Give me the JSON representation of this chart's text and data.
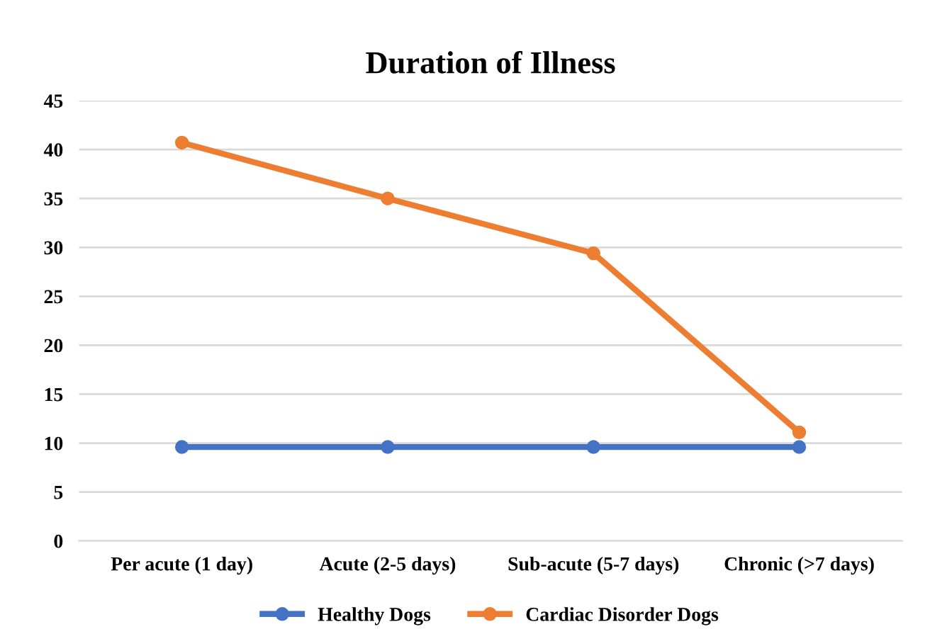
{
  "chart_data": {
    "type": "line",
    "title": "Duration of Illness",
    "categories": [
      "Per acute (1 day)",
      "Acute (2-5 days)",
      "Sub-acute (5-7 days)",
      "Chronic (>7 days)"
    ],
    "series": [
      {
        "name": "Healthy Dogs",
        "color": "#4472c4",
        "values": [
          9.6,
          9.6,
          9.6,
          9.6
        ]
      },
      {
        "name": "Cardiac Disorder Dogs",
        "color": "#ed7d31",
        "values": [
          40.7,
          35.0,
          29.4,
          11.1
        ]
      }
    ],
    "ylim": [
      0,
      45
    ],
    "yticks": [
      0,
      5,
      10,
      15,
      20,
      25,
      30,
      35,
      40,
      45
    ],
    "grid": "y",
    "legend": "bottom",
    "marker": "circle",
    "line_style": "solid"
  }
}
